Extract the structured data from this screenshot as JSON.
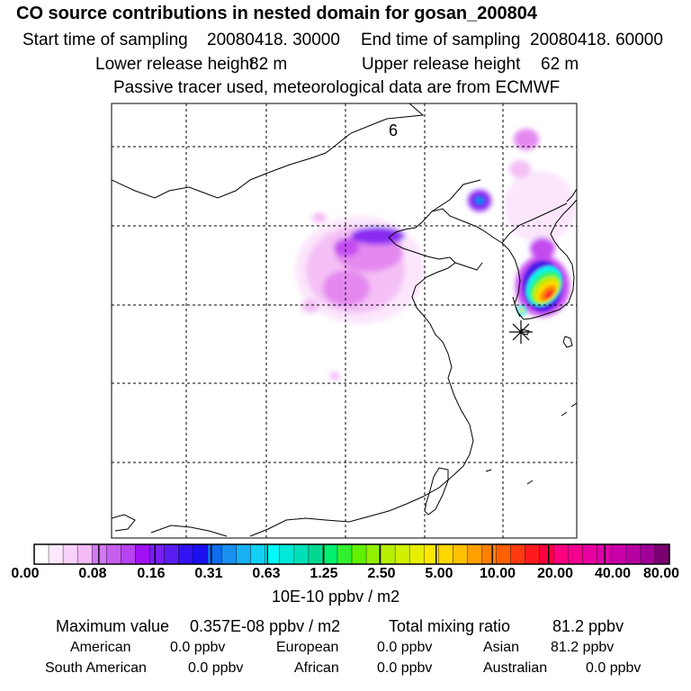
{
  "title": "CO  source contributions in nested domain for gosan_200804",
  "header": {
    "start_label": "Start time of sampling",
    "start_value": "20080418. 30000",
    "end_label": "End time of sampling",
    "end_value": "20080418. 60000",
    "lower_label": "Lower release height",
    "lower_value": "82 m",
    "upper_label": "Upper release height",
    "upper_value": "62 m",
    "note": "Passive tracer used, meteorological data are from ECMWF"
  },
  "map": {
    "panel_label": "6",
    "colors": {
      "c1": "#fbe6fb",
      "c2": "#f4c0f6",
      "c3": "#e488f0",
      "c4": "#c44cf0",
      "c5": "#8a2bf2",
      "c6": "#4b1ee8",
      "c7": "#1a7ff0",
      "c8": "#00f4f0",
      "c9": "#30f070",
      "c10": "#b8f000",
      "c11": "#ffd800",
      "c12": "#ff8800",
      "c13": "#ff1a28"
    }
  },
  "colorbar": {
    "colors": [
      "#ffffff",
      "#fde8fd",
      "#f9d2f9",
      "#f4bbf4",
      "#d07af0",
      "#c75fef",
      "#b744f0",
      "#a012f4",
      "#7a1ef4",
      "#5a1cf0",
      "#3012f2",
      "#1a10f0",
      "#0e6cee",
      "#1890f0",
      "#18b0f2",
      "#10d0f4",
      "#00f8f8",
      "#00e8d8",
      "#00e0b8",
      "#00d890",
      "#00f070",
      "#30f030",
      "#60f000",
      "#90f000",
      "#b8f000",
      "#d0f000",
      "#e8f000",
      "#ffe800",
      "#ffd800",
      "#ffc000",
      "#ffa000",
      "#ff8000",
      "#ff6000",
      "#ff3a10",
      "#ff1a20",
      "#ff0040",
      "#ff0080",
      "#f40090",
      "#e800a0",
      "#d800a8",
      "#c800a8",
      "#b400a0",
      "#a00098",
      "#7a0070"
    ],
    "ticks": [
      "0.00",
      "0.08",
      "0.16",
      "0.31",
      "0.63",
      "1.25",
      "2.50",
      "5.00",
      "10.00",
      "20.00",
      "40.00",
      "80.00"
    ],
    "units": "10E-10 ppbv / m2"
  },
  "footer": {
    "max_label": "Maximum value",
    "max_value": "0.357E-08 ppbv / m2",
    "total_label": "Total mixing ratio",
    "total_value": "81.2 ppbv",
    "american_label": "American",
    "american_value": "0.0 ppbv",
    "european_label": "European",
    "european_value": "0.0 ppbv",
    "asian_label": "Asian",
    "asian_value": "81.2 ppbv",
    "south_american_label": "South American",
    "south_american_value": "0.0 ppbv",
    "african_label": "African",
    "african_value": "0.0 ppbv",
    "australian_label": "Australian",
    "australian_value": "0.0 ppbv"
  }
}
